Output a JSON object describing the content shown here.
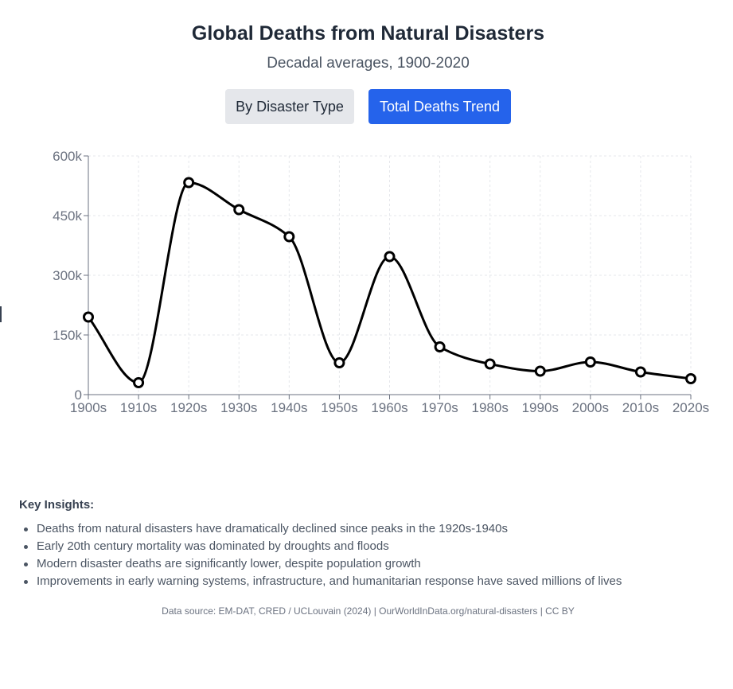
{
  "header": {
    "title": "Global Deaths from Natural Disasters",
    "subtitle": "Decadal averages, 1900-2020"
  },
  "toggle": {
    "by_type_label": "By Disaster Type",
    "total_label": "Total Deaths Trend",
    "active": "Total Deaths Trend",
    "active_color": "#2563eb",
    "inactive_color": "#e5e7eb"
  },
  "chart_data": {
    "type": "line",
    "categories": [
      "1900s",
      "1910s",
      "1920s",
      "1930s",
      "1940s",
      "1950s",
      "1960s",
      "1970s",
      "1980s",
      "1990s",
      "2000s",
      "2010s",
      "2020s"
    ],
    "series": [
      {
        "values": [
          195000,
          30000,
          533000,
          465000,
          397000,
          80000,
          347000,
          120000,
          77000,
          59000,
          82000,
          57000,
          40000
        ],
        "color": "#000000"
      }
    ],
    "yticks": [
      0,
      150000,
      300000,
      450000,
      600000
    ],
    "ytick_labels": [
      "0",
      "150k",
      "300k",
      "450k",
      "600k"
    ],
    "ylim": [
      0,
      600000
    ],
    "title": "",
    "xlabel": "",
    "ylabel": "",
    "grid": true,
    "curve": "smooth",
    "markers": "hollow-circle"
  },
  "insights": {
    "title": "Key Insights:",
    "items": [
      "Deaths from natural disasters have dramatically declined since peaks in the 1920s-1940s",
      "Early 20th century mortality was dominated by droughts and floods",
      "Modern disaster deaths are significantly lower, despite population growth",
      "Improvements in early warning systems, infrastructure, and humanitarian response have saved millions of lives"
    ]
  },
  "footer": {
    "source": "Data source: EM-DAT, CRED / UCLouvain (2024) | OurWorldInData.org/natural-disasters | CC BY"
  }
}
